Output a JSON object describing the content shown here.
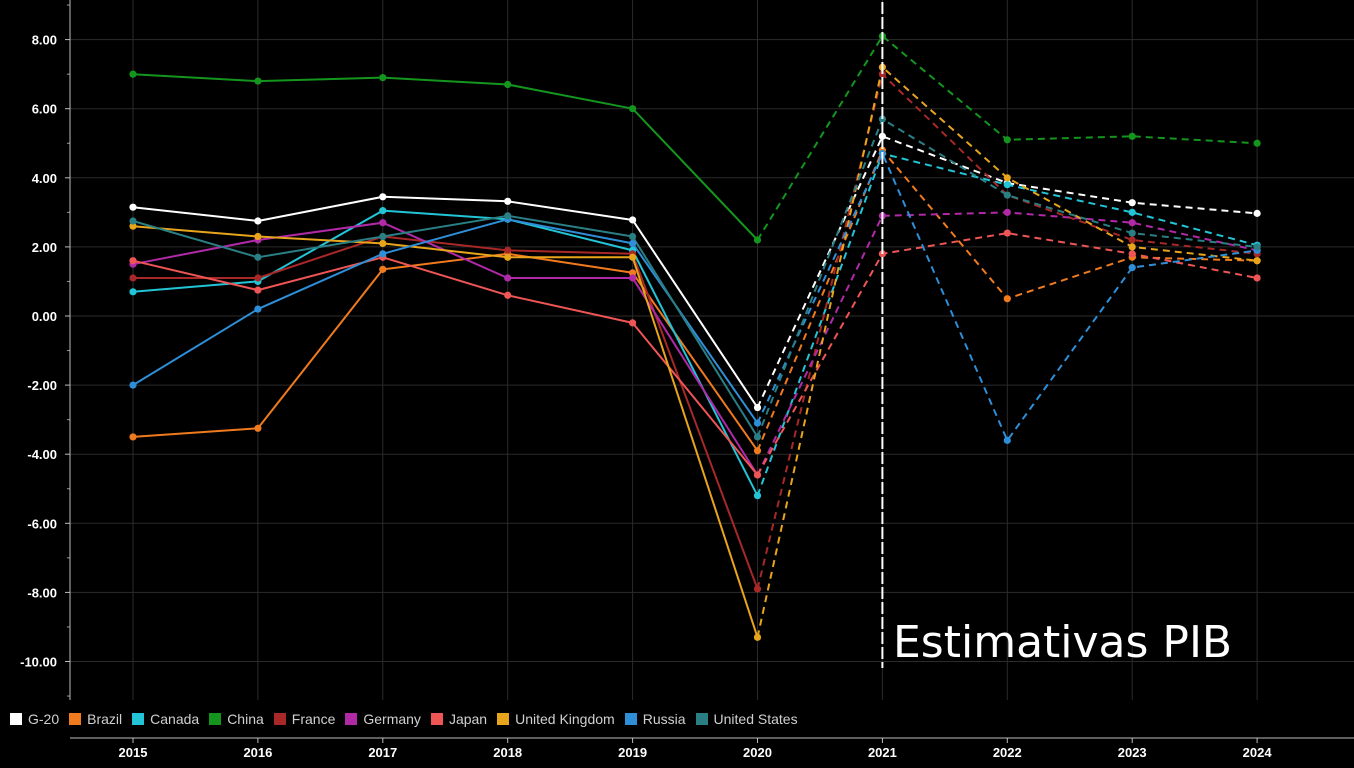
{
  "chart_data": {
    "type": "line",
    "title": "",
    "xlabel": "",
    "ylabel": "",
    "categories": [
      "2015",
      "2016",
      "2017",
      "2018",
      "2019",
      "2020",
      "2021",
      "2022",
      "2023",
      "2024"
    ],
    "y_ticks": [
      "8.00",
      "6.00",
      "4.00",
      "2.00",
      "0.00",
      "-2.00",
      "-4.00",
      "-6.00",
      "-8.00",
      "-10.00"
    ],
    "ylim": [
      -11,
      9
    ],
    "grid": true,
    "legend_position": "bottom-left",
    "forecast_start": "2021",
    "annotation": "Estimativas PIB",
    "series": [
      {
        "name": "G-20",
        "color": "#ffffff",
        "values": [
          3.15,
          2.75,
          3.45,
          3.32,
          2.78,
          -2.65,
          5.2,
          3.85,
          3.28,
          2.97
        ]
      },
      {
        "name": "Brazil",
        "color": "#f07a1e",
        "values": [
          -3.5,
          -3.25,
          1.35,
          1.8,
          1.25,
          -3.9,
          4.8,
          0.5,
          1.7,
          1.6
        ]
      },
      {
        "name": "Canada",
        "color": "#22c4d6",
        "values": [
          0.7,
          1.0,
          3.05,
          2.8,
          1.9,
          -5.2,
          4.7,
          3.8,
          3.0,
          2.05
        ]
      },
      {
        "name": "China",
        "color": "#14961e",
        "values": [
          7.0,
          6.8,
          6.9,
          6.7,
          6.0,
          2.2,
          8.1,
          5.1,
          5.2,
          5.0
        ]
      },
      {
        "name": "France",
        "color": "#a82828",
        "values": [
          1.1,
          1.1,
          2.3,
          1.9,
          1.8,
          -7.9,
          7.0,
          3.5,
          2.2,
          1.8
        ]
      },
      {
        "name": "Germany",
        "color": "#b02aa8",
        "values": [
          1.5,
          2.2,
          2.7,
          1.1,
          1.1,
          -4.6,
          2.9,
          3.0,
          2.7,
          1.9
        ]
      },
      {
        "name": "Japan",
        "color": "#ee5555",
        "values": [
          1.6,
          0.75,
          1.7,
          0.6,
          -0.2,
          -4.6,
          1.8,
          2.4,
          1.8,
          1.1
        ]
      },
      {
        "name": "United Kingdom",
        "color": "#e8a51c",
        "values": [
          2.6,
          2.3,
          2.1,
          1.7,
          1.7,
          -9.3,
          7.2,
          4.0,
          2.0,
          1.6
        ]
      },
      {
        "name": "Russia",
        "color": "#2e8fd8",
        "values": [
          -2.0,
          0.2,
          1.8,
          2.8,
          2.1,
          -3.1,
          4.7,
          -3.6,
          1.4,
          1.9
        ]
      },
      {
        "name": "United States",
        "color": "#2a7f84",
        "values": [
          2.75,
          1.7,
          2.3,
          2.9,
          2.3,
          -3.5,
          5.7,
          3.5,
          2.4,
          2.0
        ]
      }
    ]
  }
}
